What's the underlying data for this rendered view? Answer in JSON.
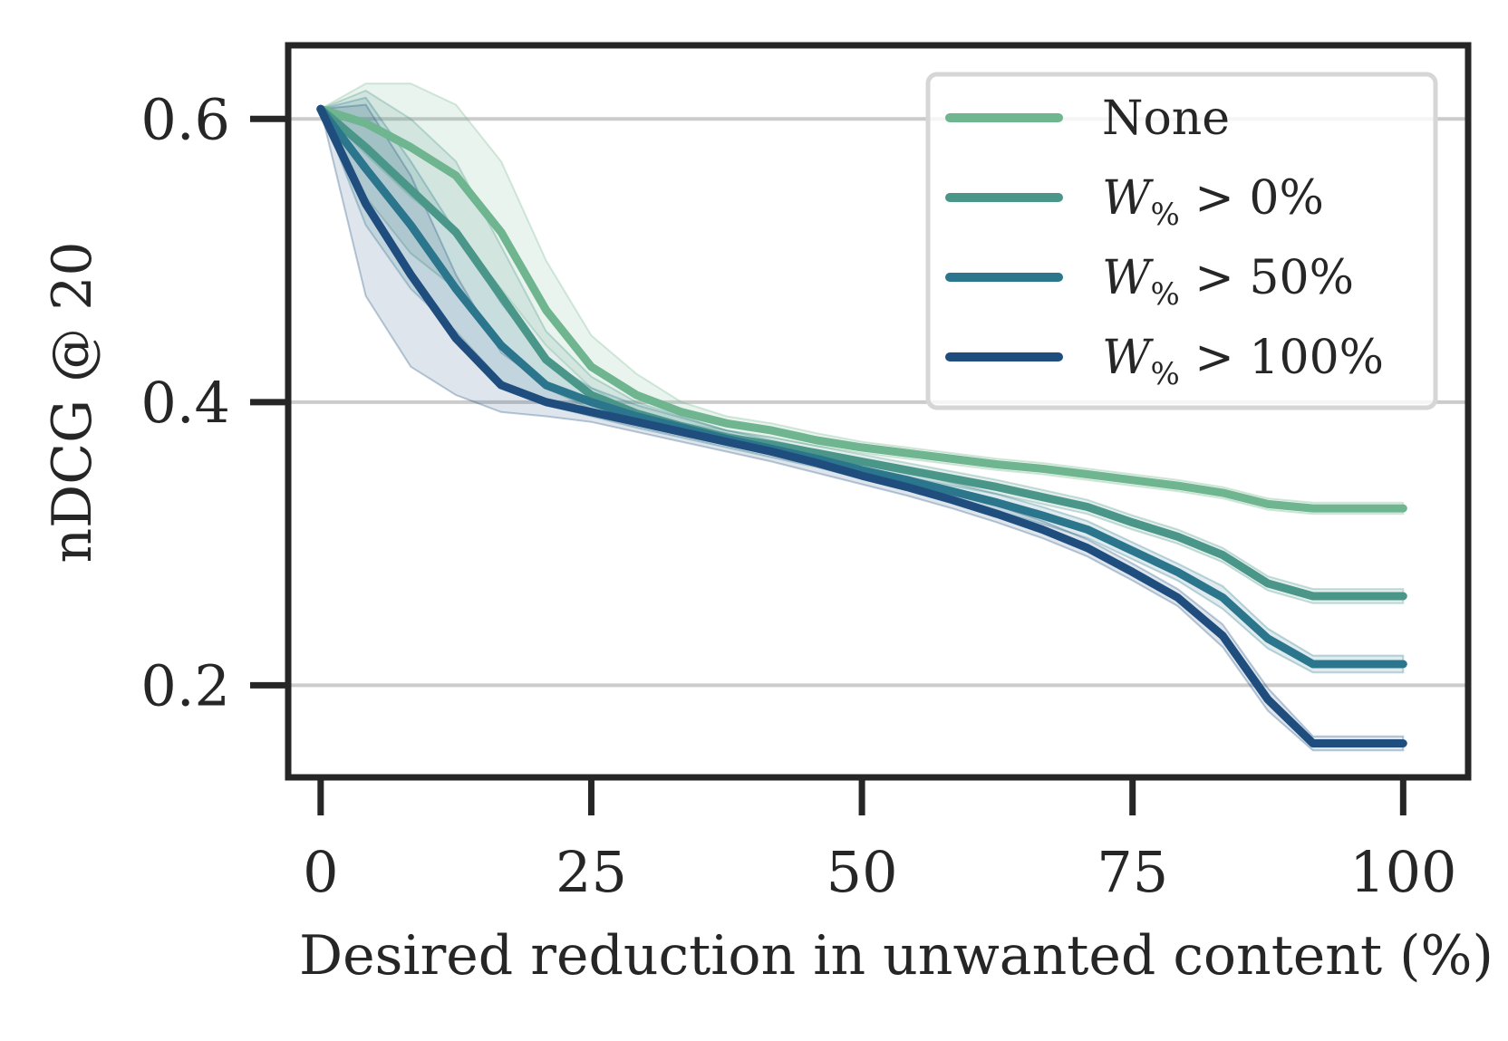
{
  "chart_data": {
    "type": "line",
    "xlabel": "Desired reduction in unwanted content (%)",
    "ylabel": "nDCG @ 20",
    "xlim": [
      -3,
      106
    ],
    "ylim": [
      0.135,
      0.652
    ],
    "xticks": [
      0,
      25,
      50,
      75,
      100
    ],
    "yticks": [
      0.2,
      0.4,
      0.6
    ],
    "xtick_labels": [
      "0",
      "25",
      "50",
      "75",
      "100"
    ],
    "ytick_labels": [
      "0.2",
      "0.4",
      "0.6"
    ],
    "grid": "horizontal",
    "legend_position": "top-right",
    "x": [
      0,
      4.17,
      8.33,
      12.5,
      16.67,
      20.83,
      25,
      29.17,
      33.33,
      37.5,
      41.67,
      45.83,
      50,
      54.17,
      58.33,
      62.5,
      66.67,
      70.83,
      75,
      79.17,
      83.33,
      87.5,
      91.67,
      95.83,
      100
    ],
    "series": [
      {
        "name": "None",
        "legend_text": "None",
        "color": "#6fb58f",
        "values": [
          0.607,
          0.597,
          0.58,
          0.56,
          0.52,
          0.465,
          0.425,
          0.405,
          0.393,
          0.385,
          0.38,
          0.373,
          0.368,
          0.364,
          0.36,
          0.356,
          0.353,
          0.349,
          0.345,
          0.341,
          0.336,
          0.328,
          0.325,
          0.325,
          0.325
        ],
        "upper": [
          0.607,
          0.625,
          0.625,
          0.61,
          0.57,
          0.5,
          0.447,
          0.42,
          0.4,
          0.39,
          0.385,
          0.378,
          0.372,
          0.368,
          0.364,
          0.36,
          0.357,
          0.353,
          0.349,
          0.345,
          0.34,
          0.332,
          0.329,
          0.329,
          0.329
        ],
        "lower": [
          0.607,
          0.575,
          0.545,
          0.52,
          0.48,
          0.44,
          0.41,
          0.392,
          0.385,
          0.38,
          0.375,
          0.369,
          0.364,
          0.36,
          0.356,
          0.352,
          0.349,
          0.345,
          0.341,
          0.337,
          0.332,
          0.324,
          0.321,
          0.321,
          0.321
        ]
      },
      {
        "name": "W% > 0%",
        "legend_prefix": "W",
        "legend_sub": "%",
        "legend_suffix": " > 0%",
        "color": "#4a9689",
        "values": [
          0.607,
          0.58,
          0.55,
          0.52,
          0.475,
          0.43,
          0.405,
          0.392,
          0.383,
          0.375,
          0.37,
          0.364,
          0.358,
          0.352,
          0.346,
          0.34,
          0.333,
          0.326,
          0.315,
          0.305,
          0.292,
          0.272,
          0.263,
          0.263,
          0.263
        ],
        "upper": [
          0.607,
          0.62,
          0.6,
          0.57,
          0.51,
          0.45,
          0.418,
          0.4,
          0.39,
          0.38,
          0.375,
          0.369,
          0.363,
          0.357,
          0.351,
          0.345,
          0.338,
          0.331,
          0.32,
          0.31,
          0.297,
          0.277,
          0.268,
          0.268,
          0.268
        ],
        "lower": [
          0.607,
          0.545,
          0.505,
          0.48,
          0.44,
          0.41,
          0.395,
          0.385,
          0.377,
          0.37,
          0.365,
          0.359,
          0.353,
          0.347,
          0.341,
          0.335,
          0.328,
          0.321,
          0.31,
          0.3,
          0.287,
          0.267,
          0.258,
          0.258,
          0.258
        ]
      },
      {
        "name": "W% > 50%",
        "legend_prefix": "W",
        "legend_sub": "%",
        "legend_suffix": " > 50%",
        "color": "#2b768c",
        "values": [
          0.607,
          0.565,
          0.525,
          0.48,
          0.44,
          0.412,
          0.4,
          0.39,
          0.382,
          0.374,
          0.367,
          0.36,
          0.352,
          0.345,
          0.337,
          0.329,
          0.32,
          0.31,
          0.295,
          0.28,
          0.262,
          0.233,
          0.215,
          0.215,
          0.215
        ],
        "upper": [
          0.607,
          0.615,
          0.57,
          0.52,
          0.47,
          0.43,
          0.41,
          0.398,
          0.389,
          0.38,
          0.373,
          0.366,
          0.358,
          0.351,
          0.343,
          0.335,
          0.326,
          0.316,
          0.301,
          0.286,
          0.27,
          0.24,
          0.221,
          0.221,
          0.221
        ],
        "lower": [
          0.607,
          0.525,
          0.48,
          0.45,
          0.415,
          0.398,
          0.39,
          0.382,
          0.375,
          0.368,
          0.361,
          0.354,
          0.346,
          0.339,
          0.331,
          0.323,
          0.314,
          0.304,
          0.289,
          0.274,
          0.254,
          0.226,
          0.209,
          0.209,
          0.209
        ]
      },
      {
        "name": "W% > 100%",
        "legend_prefix": "W",
        "legend_sub": "%",
        "legend_suffix": " > 100%",
        "color": "#1f4e7e",
        "values": [
          0.607,
          0.54,
          0.49,
          0.445,
          0.412,
          0.4,
          0.393,
          0.386,
          0.379,
          0.372,
          0.365,
          0.357,
          0.348,
          0.34,
          0.331,
          0.321,
          0.31,
          0.297,
          0.28,
          0.262,
          0.235,
          0.19,
          0.159,
          0.159,
          0.159
        ],
        "upper": [
          0.607,
          0.61,
          0.56,
          0.49,
          0.435,
          0.412,
          0.4,
          0.392,
          0.385,
          0.378,
          0.371,
          0.363,
          0.354,
          0.346,
          0.337,
          0.327,
          0.316,
          0.303,
          0.286,
          0.268,
          0.243,
          0.198,
          0.164,
          0.164,
          0.164
        ],
        "lower": [
          0.607,
          0.475,
          0.425,
          0.405,
          0.393,
          0.39,
          0.386,
          0.379,
          0.372,
          0.365,
          0.358,
          0.35,
          0.342,
          0.334,
          0.325,
          0.315,
          0.304,
          0.291,
          0.274,
          0.256,
          0.227,
          0.182,
          0.154,
          0.154,
          0.154
        ]
      }
    ]
  }
}
